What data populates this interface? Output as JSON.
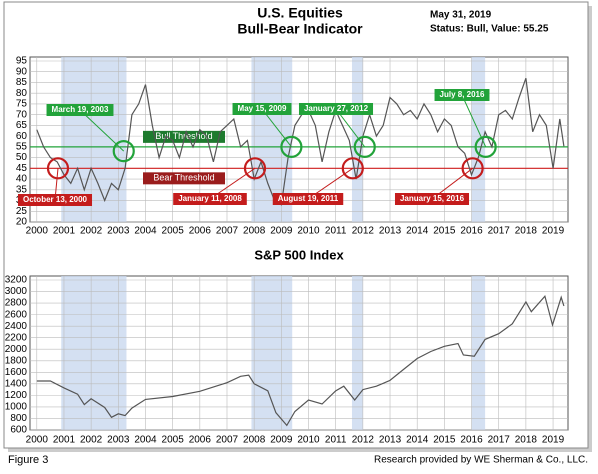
{
  "header": {
    "title": "U.S. Equities",
    "subtitle": "Bull-Bear Indicator",
    "date": "May 31, 2019",
    "status": "Status: Bull, Value: 55.25"
  },
  "footer": {
    "left": "Figure 3",
    "right": "Research provided by WE Sherman & Co., LLC."
  },
  "chart_data": [
    {
      "type": "line",
      "title": null,
      "x": [
        2000,
        2000.25,
        2000.5,
        2000.75,
        2001,
        2001.25,
        2001.5,
        2001.75,
        2002,
        2002.25,
        2002.5,
        2002.75,
        2003,
        2003.25,
        2003.5,
        2003.75,
        2004,
        2004.25,
        2004.5,
        2004.75,
        2005,
        2005.25,
        2005.5,
        2005.75,
        2006,
        2006.25,
        2006.5,
        2006.75,
        2007,
        2007.25,
        2007.5,
        2007.75,
        2008,
        2008.25,
        2008.5,
        2008.75,
        2009,
        2009.25,
        2009.5,
        2009.75,
        2010,
        2010.25,
        2010.5,
        2010.75,
        2011,
        2011.25,
        2011.5,
        2011.75,
        2012,
        2012.25,
        2012.5,
        2012.75,
        2013,
        2013.25,
        2013.5,
        2013.75,
        2014,
        2014.25,
        2014.5,
        2014.75,
        2015,
        2015.25,
        2015.5,
        2015.75,
        2016,
        2016.25,
        2016.5,
        2016.75,
        2017,
        2017.25,
        2017.5,
        2017.75,
        2018,
        2018.25,
        2018.5,
        2018.75,
        2019,
        2019.25,
        2019.4
      ],
      "series": [
        {
          "name": null,
          "color": "#555555",
          "values": [
            63,
            55,
            50,
            48,
            42,
            38,
            45,
            35,
            45,
            38,
            30,
            38,
            35,
            45,
            70,
            75,
            84,
            65,
            50,
            60,
            58,
            50,
            62,
            55,
            63,
            60,
            48,
            62,
            65,
            68,
            55,
            58,
            40,
            48,
            38,
            30,
            28,
            50,
            65,
            70,
            72,
            65,
            48,
            62,
            72,
            65,
            58,
            40,
            60,
            70,
            60,
            65,
            78,
            75,
            70,
            72,
            68,
            75,
            70,
            62,
            68,
            65,
            55,
            52,
            42,
            50,
            62,
            55,
            70,
            72,
            68,
            78,
            87,
            62,
            70,
            65,
            45,
            68,
            55.25
          ]
        }
      ],
      "xlim": [
        1999.75,
        2019.55
      ],
      "ylim": [
        20,
        95
      ],
      "xticks": [
        2000,
        2001,
        2002,
        2003,
        2004,
        2005,
        2006,
        2007,
        2008,
        2009,
        2010,
        2011,
        2012,
        2013,
        2014,
        2015,
        2016,
        2017,
        2018,
        2019
      ],
      "yticks": [
        20,
        25,
        30,
        35,
        40,
        45,
        50,
        55,
        60,
        65,
        70,
        75,
        80,
        85,
        90,
        95
      ],
      "grid": true,
      "shaded": [
        [
          2000.9,
          2003.3
        ],
        [
          2007.9,
          2009.4
        ],
        [
          2011.6,
          2012.0
        ],
        [
          2016.0,
          2016.5
        ]
      ],
      "thresholds": [
        {
          "label": "Bull Threshold",
          "value": 55,
          "color": "#22a33a"
        },
        {
          "label": "Bear Threshold",
          "value": 45,
          "color": "#d11f1f"
        }
      ],
      "annotations": [
        {
          "label": "March 19, 2003",
          "x": 2003.2,
          "y": 53,
          "kind": "bull"
        },
        {
          "label": "May 15, 2009",
          "x": 2009.37,
          "y": 55,
          "kind": "bull"
        },
        {
          "label": "January 27, 2012",
          "x": 2012.07,
          "y": 55,
          "kind": "bull"
        },
        {
          "label": "July 8, 2016",
          "x": 2016.52,
          "y": 55,
          "kind": "bull"
        },
        {
          "label": "October 13, 2000",
          "x": 2000.78,
          "y": 45,
          "kind": "bear"
        },
        {
          "label": "January 11, 2008",
          "x": 2008.03,
          "y": 45,
          "kind": "bear"
        },
        {
          "label": "August 19, 2011",
          "x": 2011.63,
          "y": 45,
          "kind": "bear"
        },
        {
          "label": "January 15, 2016",
          "x": 2016.04,
          "y": 45,
          "kind": "bear"
        }
      ]
    },
    {
      "type": "line",
      "title": "S&P 500 Index",
      "x": [
        2000,
        2000.5,
        2001,
        2001.5,
        2001.75,
        2002,
        2002.5,
        2002.75,
        2003,
        2003.25,
        2003.5,
        2004,
        2005,
        2006,
        2007,
        2007.5,
        2007.8,
        2008,
        2008.5,
        2008.8,
        2009.2,
        2009.5,
        2010,
        2010.5,
        2011,
        2011.3,
        2011.7,
        2012,
        2012.5,
        2013,
        2013.5,
        2014,
        2014.5,
        2015,
        2015.5,
        2015.7,
        2016.1,
        2016.5,
        2017,
        2017.5,
        2018,
        2018.2,
        2018.7,
        2018.98,
        2019.3,
        2019.4
      ],
      "series": [
        {
          "name": null,
          "color": "#555555",
          "values": [
            1450,
            1450,
            1330,
            1220,
            1040,
            1140,
            990,
            820,
            880,
            850,
            980,
            1130,
            1180,
            1270,
            1420,
            1530,
            1550,
            1400,
            1280,
            900,
            680,
            920,
            1120,
            1050,
            1280,
            1360,
            1120,
            1300,
            1360,
            1460,
            1650,
            1840,
            1960,
            2050,
            2100,
            1900,
            1880,
            2170,
            2270,
            2440,
            2820,
            2650,
            2920,
            2420,
            2900,
            2750
          ]
        }
      ],
      "xlim": [
        1999.75,
        2019.55
      ],
      "ylim": [
        600,
        3200
      ],
      "xticks": [
        2000,
        2001,
        2002,
        2003,
        2004,
        2005,
        2006,
        2007,
        2008,
        2009,
        2010,
        2011,
        2012,
        2013,
        2014,
        2015,
        2016,
        2017,
        2018,
        2019
      ],
      "yticks": [
        600,
        800,
        1000,
        1200,
        1400,
        1600,
        1800,
        2000,
        2200,
        2400,
        2600,
        2800,
        3000,
        3200
      ],
      "grid": true,
      "shaded": [
        [
          2000.9,
          2003.3
        ],
        [
          2007.9,
          2009.4
        ],
        [
          2011.6,
          2012.0
        ],
        [
          2016.0,
          2016.5
        ]
      ]
    }
  ]
}
